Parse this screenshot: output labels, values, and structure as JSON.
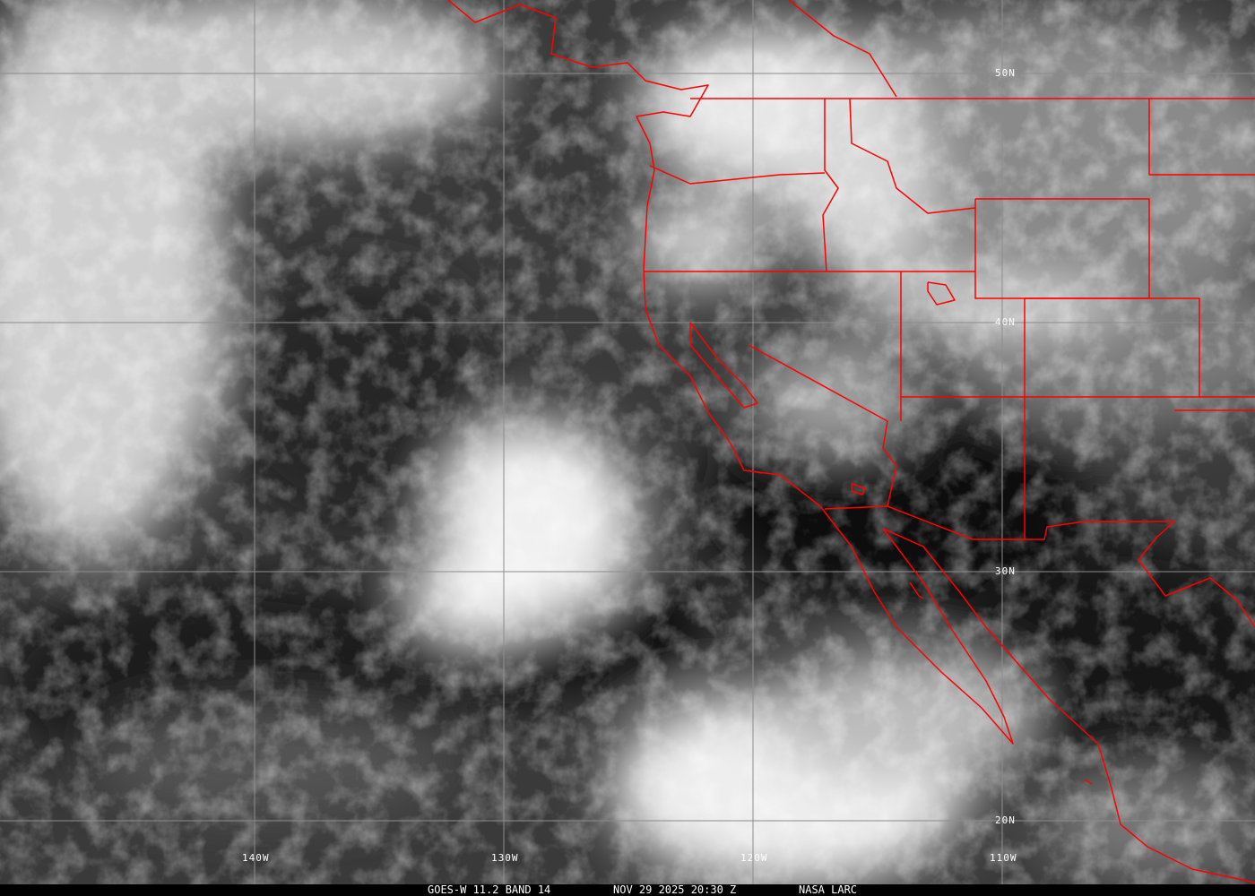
{
  "image": {
    "type": "satellite-infrared",
    "caption": {
      "satellite": "GOES-W 11.2 BAND 14",
      "datetime": "NOV 29 2025 20:30 Z",
      "source": "NASA LARC"
    },
    "latitude_labels": [
      "50N",
      "40N",
      "30N",
      "20N"
    ],
    "longitude_labels": [
      "140W",
      "130W",
      "120W",
      "110W"
    ]
  },
  "colors": {
    "boundaries": "#ff0000",
    "grid": "#8c8c8c",
    "caption_background": "#000000",
    "caption_text": "#ffffff"
  }
}
